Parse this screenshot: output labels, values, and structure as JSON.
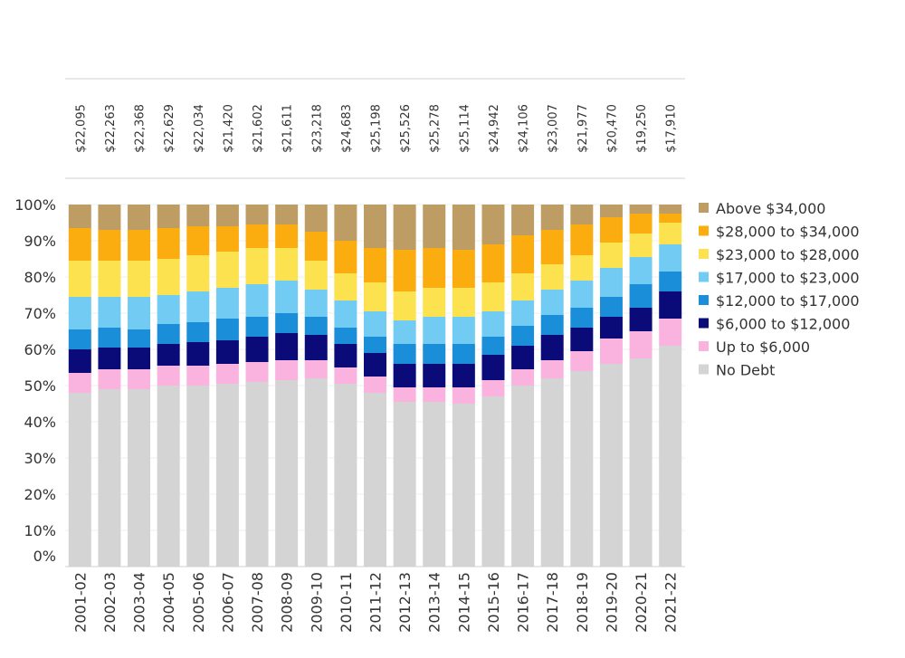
{
  "chart_data": {
    "type": "bar",
    "stacked": true,
    "categories": [
      "2001-02",
      "2002-03",
      "2003-04",
      "2004-05",
      "2005-06",
      "2006-07",
      "2007-08",
      "2008-09",
      "2009-10",
      "2010-11",
      "2011-12",
      "2012-13",
      "2013-14",
      "2014-15",
      "2015-16",
      "2016-17",
      "2017-18",
      "2018-19",
      "2019-20",
      "2020-21",
      "2021-22"
    ],
    "average_debt_labels": [
      "$22,095",
      "$22,263",
      "$22,368",
      "$22,629",
      "$22,034",
      "$21,420",
      "$21,602",
      "$21,611",
      "$23,218",
      "$24,683",
      "$25,198",
      "$25,526",
      "$25,278",
      "$25,114",
      "$24,942",
      "$24,106",
      "$23,007",
      "$21,977",
      "$20,470",
      "$19,250",
      "$17,910"
    ],
    "ylim": [
      0,
      100
    ],
    "yticks": [
      "0%",
      "10%",
      "20%",
      "30%",
      "40%",
      "50%",
      "60%",
      "70%",
      "80%",
      "90%",
      "100%"
    ],
    "grid": true,
    "legend_position": "right",
    "series": [
      {
        "name": "No Debt",
        "color": "#d4d4d4",
        "values": [
          48,
          49,
          49,
          50,
          50,
          50.5,
          51,
          51.5,
          52,
          50.5,
          48,
          45.5,
          45.5,
          45,
          47,
          50,
          52,
          54,
          56,
          57.5,
          61
        ]
      },
      {
        "name": "Up to $6,000",
        "color": "#f9b3de",
        "values": [
          5.5,
          5.5,
          5.5,
          5.5,
          5.5,
          5.5,
          5.5,
          5.5,
          5,
          4.5,
          4.5,
          4,
          4,
          4.5,
          4.5,
          4.5,
          5,
          5.5,
          7,
          7.5,
          7.5
        ]
      },
      {
        "name": "$6,000 to $12,000",
        "color": "#0a0a78",
        "values": [
          6.5,
          6,
          6,
          6,
          6.5,
          6.5,
          7,
          7.5,
          7,
          6.5,
          6.5,
          6.5,
          6.5,
          6.5,
          7,
          6.5,
          7,
          6.5,
          6,
          6.5,
          7.5
        ]
      },
      {
        "name": "$12,000 to $17,000",
        "color": "#1a8ed8",
        "values": [
          5.5,
          5.5,
          5,
          5.5,
          5.5,
          6,
          5.5,
          5.5,
          5,
          4.5,
          4.5,
          5.5,
          5.5,
          5.5,
          5,
          5.5,
          5.5,
          5.5,
          5.5,
          6.5,
          5.5
        ]
      },
      {
        "name": "$17,000 to $23,000",
        "color": "#72cbf2",
        "values": [
          9,
          8.5,
          9,
          8,
          8.5,
          8.5,
          9,
          9,
          7.5,
          7.5,
          7,
          6.5,
          7.5,
          7.5,
          7,
          7,
          7,
          7.5,
          8,
          7.5,
          7.5
        ]
      },
      {
        "name": "$23,000 to $28,000",
        "color": "#fbe24e",
        "values": [
          10,
          10,
          10,
          10,
          10,
          10,
          10,
          9,
          8,
          7.5,
          8,
          8,
          8,
          8,
          8,
          7.5,
          7,
          7,
          7,
          6.5,
          6
        ]
      },
      {
        "name": "$28,000 to $34,000",
        "color": "#fbad10",
        "values": [
          9,
          8.5,
          8.5,
          8.5,
          8,
          7,
          6.5,
          6.5,
          8,
          9,
          9.5,
          11.5,
          11,
          10.5,
          10.5,
          10.5,
          9.5,
          8.5,
          7,
          5.5,
          2.5
        ]
      },
      {
        "name": "Above $34,000",
        "color": "#bd9d64",
        "values": [
          6.5,
          7,
          7,
          6.5,
          6,
          6,
          5.5,
          5.5,
          7.5,
          10,
          12,
          12.5,
          12,
          12.5,
          11,
          8.5,
          7,
          5.5,
          3.5,
          2.5,
          2.5
        ]
      }
    ]
  }
}
